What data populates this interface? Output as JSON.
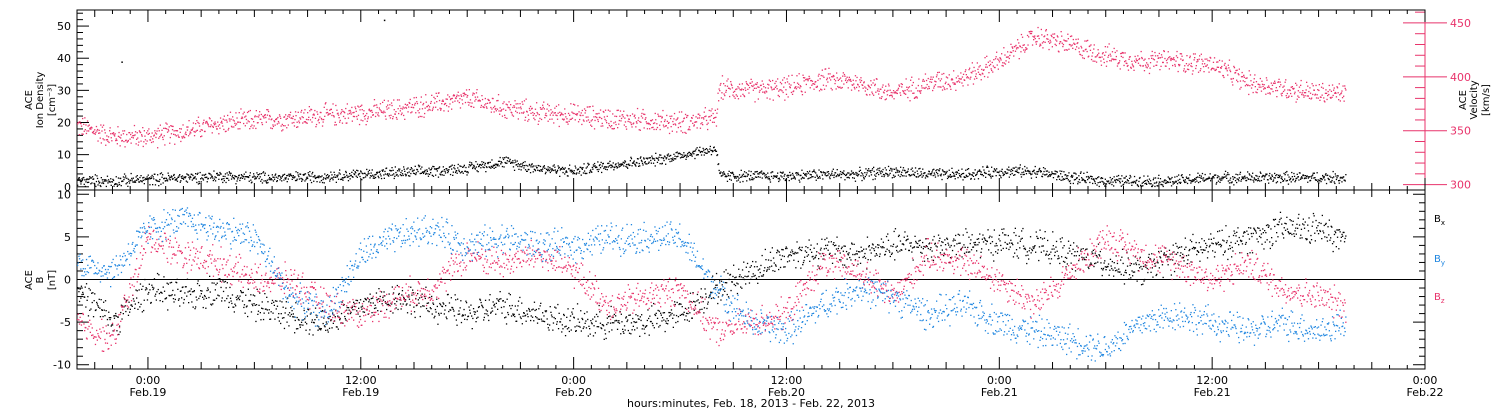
{
  "colors": {
    "black": "#000000",
    "pink": "#e8336b",
    "blue": "#1f86e0"
  },
  "x_axis": {
    "title": "hours:minutes, Feb. 18, 2013 - Feb. 22, 2013",
    "ticks": [
      {
        "hours": 0,
        "time": "0:00",
        "date": "Feb.19"
      },
      {
        "hours": 12,
        "time": "12:00",
        "date": "Feb.19"
      },
      {
        "hours": 24,
        "time": "0:00",
        "date": "Feb.20"
      },
      {
        "hours": 36,
        "time": "12:00",
        "date": "Feb.20"
      },
      {
        "hours": 48,
        "time": "0:00",
        "date": "Feb.21"
      },
      {
        "hours": 60,
        "time": "12:00",
        "date": "Feb.21"
      },
      {
        "hours": 72,
        "time": "0:00",
        "date": "Feb.22"
      }
    ]
  },
  "chart_data": [
    {
      "type": "scatter",
      "panel": "top",
      "ylabel_left": [
        "ACE",
        "Ion Density",
        "[cm⁻³]"
      ],
      "ylabel_right": [
        "ACE",
        "Velocity",
        "[km/s]"
      ],
      "xlim_hours": [
        -4,
        72
      ],
      "ylim_left": [
        -1,
        55
      ],
      "ylim_right": [
        295,
        462
      ],
      "left_ticks": [
        "0",
        "10",
        "20",
        "30",
        "40",
        "50"
      ],
      "right_ticks": [
        "300",
        "350",
        "400",
        "450"
      ],
      "series": [
        {
          "color": "#000000",
          "axis": "left",
          "x": [
            -4,
            -2,
            0,
            2,
            4,
            6,
            8,
            10,
            12,
            14,
            16,
            18,
            20,
            22,
            24,
            26,
            28,
            30,
            32,
            32.2,
            34,
            36,
            38,
            40,
            42,
            44,
            46,
            48,
            50,
            52,
            54,
            56,
            58,
            60,
            62,
            64,
            66,
            67.5
          ],
          "y": [
            2,
            2,
            2.5,
            3,
            3.5,
            3,
            3,
            3.5,
            4,
            4.5,
            5,
            6,
            8,
            6,
            5,
            7,
            8,
            10,
            12,
            3.5,
            3.5,
            3.5,
            4,
            4,
            5,
            4,
            4,
            5,
            5,
            3,
            2,
            2,
            2,
            3,
            3,
            3,
            3,
            3
          ]
        },
        {
          "color": "#e8336b",
          "axis": "right",
          "x": [
            -4,
            -2,
            0,
            2,
            4,
            6,
            8,
            10,
            12,
            14,
            16,
            18,
            20,
            22,
            24,
            26,
            28,
            30,
            32,
            32.2,
            34,
            36,
            38,
            40,
            42,
            44,
            46,
            48,
            50,
            52,
            54,
            56,
            58,
            60,
            62,
            64,
            66,
            67.5
          ],
          "y": [
            355,
            345,
            345,
            350,
            357,
            360,
            362,
            365,
            367,
            370,
            375,
            380,
            372,
            367,
            365,
            362,
            360,
            358,
            362,
            390,
            388,
            390,
            398,
            395,
            385,
            395,
            400,
            415,
            438,
            430,
            420,
            415,
            415,
            412,
            395,
            390,
            385,
            385
          ]
        }
      ]
    },
    {
      "type": "scatter",
      "panel": "bottom",
      "ylabel_left": [
        "ACE",
        "B",
        "[nT]"
      ],
      "xlim_hours": [
        -4,
        72
      ],
      "ylim": [
        -10.5,
        10.5
      ],
      "ticks": [
        "-10",
        "-5",
        "0",
        "5",
        "10"
      ],
      "zero_line": true,
      "series": [
        {
          "name": "Bx",
          "label_main": "B",
          "label_sub": "x",
          "color": "#000000",
          "x": [
            -4,
            -2,
            0,
            2,
            4,
            6,
            8,
            10,
            12,
            14,
            16,
            18,
            20,
            22,
            24,
            26,
            28,
            30,
            32,
            34,
            36,
            38,
            40,
            42,
            44,
            46,
            48,
            50,
            52,
            54,
            56,
            58,
            60,
            62,
            64,
            66,
            67.5
          ],
          "y": [
            -1,
            -5,
            -1,
            -2,
            -1,
            -3,
            -4,
            -5,
            -3,
            -2,
            -3,
            -4,
            -3,
            -4,
            -5,
            -5,
            -5,
            -4,
            -1,
            1,
            3,
            3.5,
            3,
            4,
            4,
            4,
            4.5,
            4,
            3,
            2,
            1,
            3,
            4,
            5,
            6,
            6,
            4.5
          ]
        },
        {
          "name": "By",
          "label_main": "B",
          "label_sub": "y",
          "color": "#1f86e0",
          "x": [
            -4,
            -2,
            0,
            2,
            4,
            6,
            8,
            10,
            12,
            14,
            16,
            18,
            20,
            22,
            24,
            26,
            28,
            30,
            32,
            34,
            36,
            38,
            40,
            42,
            44,
            46,
            48,
            50,
            52,
            54,
            56,
            58,
            60,
            62,
            64,
            66,
            67.5
          ],
          "y": [
            2,
            1,
            6,
            7,
            6,
            5,
            -2,
            -4,
            3,
            5,
            6,
            4,
            5,
            4,
            4,
            5,
            5,
            5,
            -1,
            -5,
            -6,
            -3,
            -1,
            -2,
            -4,
            -3,
            -5,
            -6,
            -7,
            -8,
            -5,
            -4,
            -5,
            -6,
            -5,
            -6,
            -5
          ]
        },
        {
          "name": "Bz",
          "label_main": "B",
          "label_sub": "z",
          "color": "#e8336b",
          "x": [
            -4,
            -2,
            0,
            2,
            4,
            6,
            8,
            10,
            12,
            14,
            16,
            18,
            20,
            22,
            24,
            26,
            28,
            30,
            32,
            34,
            36,
            38,
            40,
            42,
            44,
            46,
            48,
            50,
            52,
            54,
            56,
            58,
            60,
            62,
            64,
            66,
            67.5
          ],
          "y": [
            -5,
            -7,
            5,
            3,
            2,
            0,
            0,
            -3,
            -4,
            -2,
            -1,
            3,
            2,
            3,
            1,
            -3,
            -2,
            -1,
            -6,
            -5,
            -4,
            2,
            1,
            -2,
            3,
            2,
            0,
            -3,
            1,
            5,
            3,
            2,
            0,
            2,
            -1,
            -2,
            -3
          ]
        }
      ]
    }
  ]
}
